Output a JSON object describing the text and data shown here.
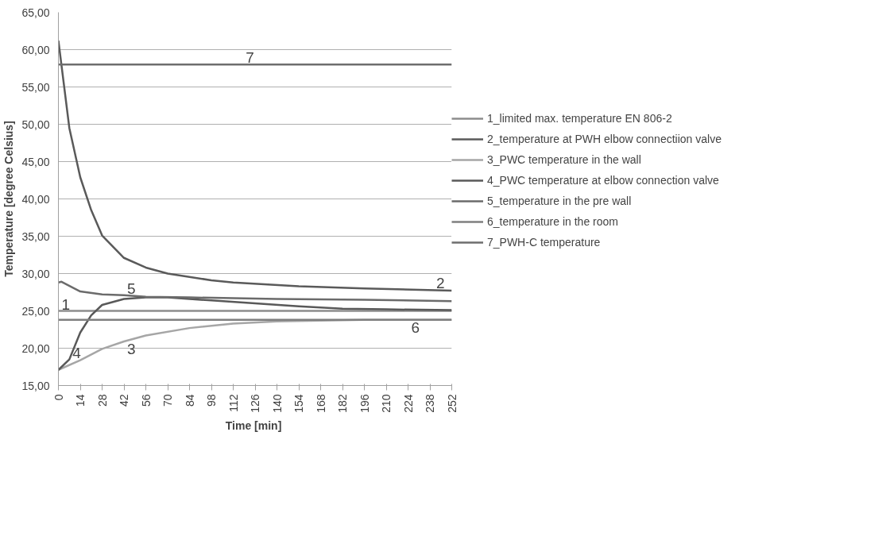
{
  "chart_data": {
    "type": "line",
    "xlabel": "Time  [min]",
    "ylabel": "Temperature [degree Celsius]",
    "xlim": [
      0,
      252
    ],
    "xticks": [
      0,
      14,
      28,
      42,
      56,
      70,
      84,
      98,
      112,
      126,
      140,
      154,
      168,
      182,
      196,
      210,
      224,
      238,
      252
    ],
    "ylim": [
      15,
      65
    ],
    "yticks": [
      {
        "value": 15,
        "label": "15,00"
      },
      {
        "value": 20,
        "label": "20,00"
      },
      {
        "value": 25,
        "label": "25,00"
      },
      {
        "value": 30,
        "label": "30,00"
      },
      {
        "value": 35,
        "label": "35,00"
      },
      {
        "value": 40,
        "label": "40,00"
      },
      {
        "value": 45,
        "label": "45,00"
      },
      {
        "value": 50,
        "label": "50,00"
      },
      {
        "value": 55,
        "label": "55,00"
      },
      {
        "value": 60,
        "label": "60,00"
      },
      {
        "value": 65,
        "label": "65,00"
      }
    ],
    "grid": "y",
    "legend": "right",
    "marker": "none",
    "line_style": "solid",
    "series": [
      {
        "name": "1_limited max. temperature EN 806-2",
        "color": "#8c8c8c",
        "x": [
          0,
          252
        ],
        "values": [
          25,
          25
        ]
      },
      {
        "name": "2_temperature at PWH elbow connectiion valve",
        "color": "#5a5a5a",
        "x": [
          0,
          7,
          14,
          21,
          28,
          42,
          56,
          70,
          98,
          112,
          154,
          196,
          252
        ],
        "values": [
          61.2,
          49.5,
          42.9,
          38.5,
          35.1,
          32.1,
          30.8,
          30.0,
          29.1,
          28.8,
          28.3,
          28.0,
          27.7
        ]
      },
      {
        "name": "3_PWC temperature in the wall",
        "color": "#a6a6a6",
        "x": [
          0,
          14,
          28,
          42,
          56,
          84,
          112,
          140,
          168,
          196,
          252
        ],
        "values": [
          17.1,
          18.4,
          19.9,
          20.9,
          21.7,
          22.7,
          23.3,
          23.6,
          23.7,
          23.8,
          23.8
        ]
      },
      {
        "name": "4_PWC temperature at elbow connection valve",
        "color": "#595959",
        "x": [
          0,
          7,
          14,
          21,
          28,
          42,
          56,
          70,
          98,
          126,
          154,
          182,
          210,
          252
        ],
        "values": [
          17.1,
          18.5,
          22.1,
          24.4,
          25.8,
          26.6,
          26.8,
          26.8,
          26.4,
          26.0,
          25.6,
          25.3,
          25.2,
          25.1
        ]
      },
      {
        "name": "5_temperature in the pre wall",
        "color": "#6b6b6b",
        "x": [
          0,
          2,
          14,
          28,
          42,
          56,
          84,
          140,
          196,
          252
        ],
        "values": [
          28.8,
          28.9,
          27.6,
          27.2,
          27.1,
          26.9,
          26.8,
          26.6,
          26.5,
          26.3
        ]
      },
      {
        "name": "6_temperature in the room",
        "color": "#7f7f7f",
        "x": [
          0,
          252
        ],
        "values": [
          23.8,
          23.8
        ]
      },
      {
        "name": "7_PWH-C temperature",
        "color": "#6e6e6e",
        "x": [
          0,
          252
        ],
        "values": [
          58,
          58
        ]
      }
    ],
    "annotations": [
      {
        "text": "1",
        "x": 0,
        "y": 25
      },
      {
        "text": "2",
        "x": 240,
        "y": 27.8
      },
      {
        "text": "3",
        "x": 42,
        "y": 20.9
      },
      {
        "text": "4",
        "x": 7,
        "y": 18.5
      },
      {
        "text": "5",
        "x": 42,
        "y": 27.1
      },
      {
        "text": "6",
        "x": 224,
        "y": 23.8
      },
      {
        "text": "7",
        "x": 118,
        "y": 58
      }
    ]
  }
}
